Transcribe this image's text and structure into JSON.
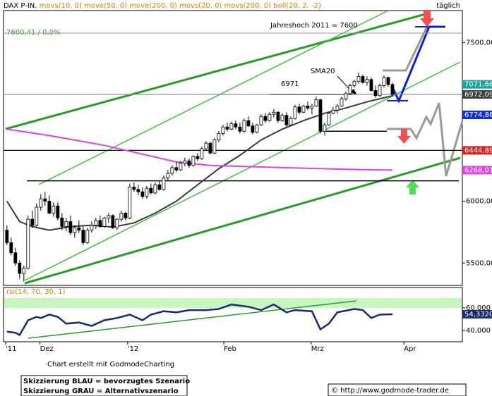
{
  "chart_data": [
    {
      "type": "candlestick",
      "title": "DAX P-IN.",
      "indicators": "movs(10, 0) move(50, 0) move(200, 0) movs(20, 0) movs(200, 0) boll(20, 2, -2)",
      "period": "täglich",
      "reference_label": "7600,41 / 0,0%",
      "x": [
        0,
        1,
        2,
        3,
        4,
        5,
        6,
        7,
        8,
        9,
        10,
        11,
        12,
        13,
        14,
        15,
        16,
        17,
        18,
        19,
        20,
        21,
        22,
        23,
        24,
        25,
        26,
        27,
        28,
        29,
        30,
        31,
        32,
        33,
        34,
        35,
        36,
        37,
        38,
        39,
        40,
        41,
        42,
        43,
        44,
        45,
        46,
        47,
        48,
        49,
        50,
        51,
        52,
        53,
        54,
        55,
        56,
        57,
        58,
        59,
        60,
        61,
        62,
        63,
        64,
        65,
        66,
        67,
        68,
        69,
        70,
        71,
        72,
        73,
        74,
        75,
        76,
        77,
        78,
        79,
        80,
        81,
        82,
        83,
        84,
        85,
        86,
        87,
        88,
        89,
        90,
        91
      ],
      "open": [
        5760,
        5660,
        5580,
        5500,
        5420,
        5460,
        5850,
        5800,
        5950,
        6020,
        6000,
        5900,
        5960,
        5860,
        5790,
        5830,
        5740,
        5780,
        5760,
        5660,
        5760,
        5800,
        5840,
        5790,
        5860,
        5880,
        5780,
        5850,
        5900,
        5860,
        6120,
        6100,
        6080,
        6040,
        6110,
        6070,
        6140,
        6100,
        6200,
        6240,
        6290,
        6270,
        6330,
        6350,
        6310,
        6390,
        6370,
        6460,
        6510,
        6420,
        6540,
        6600,
        6660,
        6640,
        6690,
        6660,
        6620,
        6720,
        6670,
        6610,
        6680,
        6760,
        6720,
        6780,
        6800,
        6720,
        6770,
        6680,
        6740,
        6850,
        6800,
        6860,
        6840,
        6860,
        6920,
        6620,
        6680,
        6790,
        6820,
        6860,
        6930,
        6980,
        7060,
        7100,
        7150,
        7090,
        7120,
        7010,
        6960,
        7060,
        7140,
        7070
      ],
      "high": [
        5800,
        5700,
        5620,
        5520,
        5480,
        5880,
        5920,
        5980,
        6060,
        6080,
        6050,
        5990,
        5990,
        5900,
        5860,
        5880,
        5800,
        5840,
        5790,
        5780,
        5830,
        5860,
        5880,
        5870,
        5900,
        5890,
        5860,
        5920,
        5910,
        6150,
        6160,
        6140,
        6120,
        6130,
        6150,
        6160,
        6180,
        6220,
        6270,
        6310,
        6340,
        6350,
        6380,
        6370,
        6400,
        6420,
        6480,
        6530,
        6520,
        6560,
        6620,
        6680,
        6700,
        6710,
        6720,
        6700,
        6740,
        6760,
        6700,
        6690,
        6780,
        6790,
        6800,
        6830,
        6810,
        6790,
        6800,
        6760,
        6870,
        6880,
        6870,
        6900,
        6880,
        6950,
        6930,
        6700,
        6800,
        6850,
        6880,
        6950,
        7000,
        7080,
        7120,
        7190,
        7170,
        7150,
        7140,
        7060,
        7080,
        7160,
        7150,
        7090
      ],
      "low": [
        5640,
        5560,
        5480,
        5380,
        5360,
        5450,
        5780,
        5790,
        5920,
        5960,
        5890,
        5870,
        5840,
        5760,
        5750,
        5720,
        5700,
        5740,
        5640,
        5650,
        5740,
        5770,
        5780,
        5780,
        5820,
        5770,
        5760,
        5830,
        5840,
        5850,
        6080,
        6050,
        6020,
        6020,
        6060,
        6060,
        6090,
        6090,
        6180,
        6220,
        6250,
        6260,
        6300,
        6290,
        6300,
        6350,
        6360,
        6440,
        6410,
        6410,
        6520,
        6580,
        6620,
        6630,
        6640,
        6600,
        6610,
        6660,
        6590,
        6600,
        6670,
        6700,
        6710,
        6750,
        6700,
        6710,
        6660,
        6670,
        6730,
        6780,
        6790,
        6820,
        6780,
        6850,
        6600,
        6580,
        6670,
        6780,
        6790,
        6850,
        6910,
        6970,
        7040,
        7080,
        7080,
        7060,
        7000,
        6940,
        6950,
        7040,
        7050,
        6950
      ],
      "close": [
        5660,
        5580,
        5500,
        5420,
        5460,
        5850,
        5800,
        5950,
        6020,
        6000,
        5900,
        5960,
        5860,
        5790,
        5830,
        5740,
        5780,
        5760,
        5660,
        5760,
        5800,
        5840,
        5790,
        5860,
        5880,
        5780,
        5850,
        5900,
        5860,
        6120,
        6100,
        6080,
        6040,
        6110,
        6070,
        6140,
        6100,
        6200,
        6240,
        6290,
        6270,
        6330,
        6350,
        6310,
        6390,
        6370,
        6460,
        6510,
        6420,
        6540,
        6600,
        6660,
        6640,
        6690,
        6660,
        6620,
        6720,
        6670,
        6610,
        6680,
        6760,
        6720,
        6780,
        6800,
        6720,
        6770,
        6680,
        6740,
        6850,
        6800,
        6860,
        6840,
        6860,
        6920,
        6620,
        6680,
        6790,
        6820,
        6860,
        6930,
        6980,
        7060,
        7100,
        7150,
        7090,
        7120,
        7010,
        6960,
        7060,
        7140,
        7070,
        6972.09
      ],
      "up_color": "#ffffff",
      "down_color": "#000000",
      "lines": [
        {
          "name": "SMA20",
          "color": "#3a3a3a",
          "x": [
            0,
            3,
            6,
            10,
            15,
            20,
            25,
            30,
            35,
            40,
            45,
            50,
            55,
            60,
            65,
            70,
            75,
            80,
            85,
            91
          ],
          "values": [
            6000,
            5830,
            5790,
            5760,
            5790,
            5800,
            5785,
            5820,
            5900,
            6000,
            6140,
            6280,
            6400,
            6540,
            6640,
            6720,
            6790,
            6840,
            6900,
            6960
          ]
        },
        {
          "color": "#e040e0",
          "x": [
            0,
            10,
            23,
            40,
            48,
            65,
            80,
            91
          ],
          "values": [
            6640,
            6580,
            6490,
            6340,
            6310,
            6290,
            6275,
            6268.01
          ]
        }
      ],
      "levels": [
        {
          "value": 7600,
          "label": "Jahreshoch 2011 = 7600"
        },
        {
          "value": 6971,
          "label": "6971"
        }
      ],
      "hlines": [
        6174,
        6620
      ],
      "price_tags": [
        {
          "value": 7071.66,
          "label": "7071,66",
          "color": "#20a0a0"
        },
        {
          "value": 6972.09,
          "label": "6972,09",
          "color": "#404040",
          "line_color": "#909090"
        },
        {
          "value": 6774.86,
          "label": "6774,86",
          "color": "#1030d0"
        },
        {
          "value": 6444.89,
          "label": "6444,89",
          "color": "#e02020",
          "line_color": "#000000"
        },
        {
          "value": 6268.01,
          "label": "6268,01",
          "color": "#e040e0"
        }
      ],
      "xlim": [
        -0.8,
        107.5
      ],
      "xticks": [
        {
          "value": -0.3,
          "label": "'11"
        },
        {
          "value": 7.8,
          "label": "Dez"
        },
        {
          "value": 28.5,
          "label": "'12"
        },
        {
          "value": 51.2,
          "label": "Feb"
        },
        {
          "value": 71.8,
          "label": "Mrz"
        },
        {
          "value": 93.7,
          "label": "Apr"
        }
      ],
      "ylim": [
        5330,
        7845
      ],
      "y_scale": "log",
      "yticks": [
        {
          "value": 7500,
          "label": "7500,00"
        },
        {
          "value": 6000,
          "label": "6000,00"
        },
        {
          "value": 5500,
          "label": "5500,00"
        }
      ]
    },
    {
      "type": "line",
      "title": "rsi(14, 70, 30, 1)",
      "x": [
        0,
        2,
        3,
        5,
        7,
        8,
        10,
        12,
        14,
        17,
        20,
        23,
        26,
        29,
        32,
        34,
        37,
        40,
        43,
        47,
        50,
        53,
        57,
        60,
        63,
        66,
        68,
        72,
        74,
        76,
        78,
        82,
        84,
        86,
        88,
        91
      ],
      "values": [
        39,
        38,
        36,
        49,
        52,
        51,
        54,
        52,
        46,
        47,
        44,
        49,
        51,
        54,
        49,
        54,
        57,
        56,
        58,
        58,
        59,
        63,
        61,
        58,
        63,
        56,
        58,
        57,
        41,
        46,
        56,
        59,
        58,
        51,
        54,
        54.33
      ],
      "last_label": "54,3320",
      "color": "#1a2a6c",
      "ylim": [
        30,
        78
      ],
      "yticks": [
        {
          "value": 60,
          "label": "60,000"
        },
        {
          "value": 40,
          "label": "40,000"
        }
      ]
    }
  ],
  "footer": {
    "credit": "Chart erstellt mit GodmodeCharting",
    "legend": [
      "Skizzierung BLAU = bevorzugtes Szenario",
      "Skizzierung GRAU = Alternativszenario"
    ],
    "copyright": "© http://www.godmode-trader.de"
  }
}
